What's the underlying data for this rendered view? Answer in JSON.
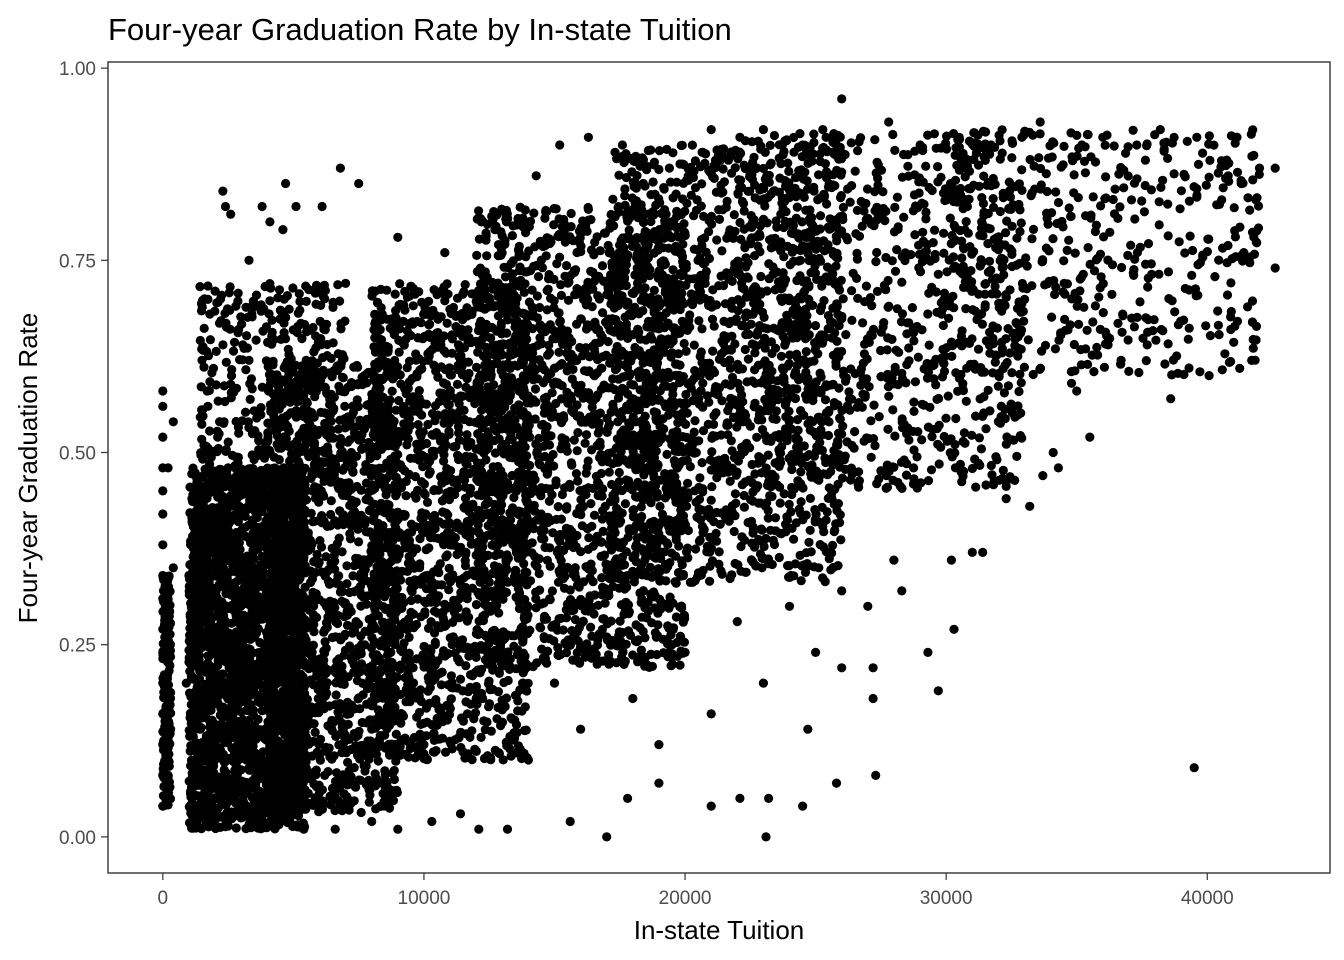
{
  "chart_data": {
    "type": "scatter",
    "title": "Four-year Graduation Rate by In-state Tuition",
    "xlabel": "In-state Tuition",
    "ylabel": "Four-year Graduation Rate",
    "xlim": [
      -2100,
      44700
    ],
    "ylim": [
      -0.047,
      1.008
    ],
    "x_ticks": [
      0,
      10000,
      20000,
      30000,
      40000
    ],
    "x_tick_labels": [
      "0",
      "10000",
      "20000",
      "30000",
      "40000"
    ],
    "y_ticks": [
      0,
      0.25,
      0.5,
      0.75,
      1.0
    ],
    "y_tick_labels": [
      "0.00",
      "0.25",
      "0.50",
      "0.75",
      "1.00"
    ],
    "grid": false,
    "point_color": "#000000",
    "series": [
      {
        "points": [
          [
            0,
            0.58
          ],
          [
            0,
            0.56
          ],
          [
            0,
            0.52
          ],
          [
            0,
            0.48
          ],
          [
            0,
            0.45
          ],
          [
            0,
            0.42
          ],
          [
            0,
            0.38
          ],
          [
            0,
            0.34
          ],
          [
            0,
            0.31
          ],
          [
            0,
            0.27
          ],
          [
            0,
            0.24
          ],
          [
            0,
            0.2
          ],
          [
            0,
            0.16
          ],
          [
            0,
            0.12
          ],
          [
            0,
            0.08
          ],
          [
            0,
            0.04
          ],
          [
            200,
            0.48
          ],
          [
            400,
            0.54
          ],
          [
            400,
            0.35
          ],
          [
            300,
            0.14
          ],
          [
            2300,
            0.84
          ],
          [
            2400,
            0.82
          ],
          [
            2600,
            0.81
          ],
          [
            3300,
            0.75
          ],
          [
            3800,
            0.82
          ],
          [
            4100,
            0.8
          ],
          [
            4700,
            0.85
          ],
          [
            4600,
            0.79
          ],
          [
            5100,
            0.82
          ],
          [
            6100,
            0.82
          ],
          [
            6800,
            0.87
          ],
          [
            7500,
            0.85
          ],
          [
            1600,
            0.7
          ],
          [
            1800,
            0.68
          ],
          [
            2000,
            0.71
          ],
          [
            2300,
            0.64
          ],
          [
            2900,
            0.66
          ],
          [
            3300,
            0.62
          ],
          [
            1500,
            0.62
          ],
          [
            1700,
            0.58
          ],
          [
            2100,
            0.52
          ],
          [
            2500,
            0.48
          ],
          [
            1400,
            0.44
          ],
          [
            1600,
            0.4
          ],
          [
            5200,
            0.6
          ],
          [
            5600,
            0.66
          ],
          [
            6200,
            0.7
          ],
          [
            7000,
            0.72
          ],
          [
            8400,
            0.68
          ],
          [
            9000,
            0.78
          ],
          [
            10800,
            0.76
          ],
          [
            12200,
            0.8
          ],
          [
            13700,
            0.8
          ],
          [
            14300,
            0.86
          ],
          [
            15200,
            0.9
          ],
          [
            16300,
            0.91
          ],
          [
            17600,
            0.9
          ],
          [
            18400,
            0.85
          ],
          [
            19400,
            0.87
          ],
          [
            21000,
            0.92
          ],
          [
            22100,
            0.91
          ],
          [
            23000,
            0.92
          ],
          [
            24500,
            0.9
          ],
          [
            25400,
            0.91
          ],
          [
            26000,
            0.96
          ],
          [
            27800,
            0.93
          ],
          [
            29000,
            0.9
          ],
          [
            30500,
            0.91
          ],
          [
            31500,
            0.88
          ],
          [
            32900,
            0.91
          ],
          [
            33600,
            0.93
          ],
          [
            35200,
            0.9
          ],
          [
            36000,
            0.91
          ],
          [
            37300,
            0.9
          ],
          [
            38200,
            0.92
          ],
          [
            39600,
            0.91
          ],
          [
            40100,
            0.88
          ],
          [
            40800,
            0.86
          ],
          [
            41300,
            0.85
          ],
          [
            42000,
            0.87
          ],
          [
            42600,
            0.87
          ],
          [
            42600,
            0.74
          ],
          [
            41400,
            0.76
          ],
          [
            40900,
            0.66
          ],
          [
            39300,
            0.61
          ],
          [
            38600,
            0.57
          ],
          [
            36200,
            0.64
          ],
          [
            34800,
            0.59
          ],
          [
            35500,
            0.52
          ],
          [
            34300,
            0.48
          ],
          [
            33200,
            0.43
          ],
          [
            31400,
            0.37
          ],
          [
            30300,
            0.27
          ],
          [
            29300,
            0.24
          ],
          [
            28300,
            0.32
          ],
          [
            27200,
            0.22
          ],
          [
            27200,
            0.18
          ],
          [
            26000,
            0.22
          ],
          [
            24700,
            0.14
          ],
          [
            23200,
            0.05
          ],
          [
            24500,
            0.04
          ],
          [
            25800,
            0.07
          ],
          [
            27300,
            0.08
          ],
          [
            22100,
            0.05
          ],
          [
            21000,
            0.04
          ],
          [
            19000,
            0.07
          ],
          [
            17800,
            0.05
          ],
          [
            17000,
            0.0
          ],
          [
            15600,
            0.02
          ],
          [
            13200,
            0.01
          ],
          [
            12100,
            0.01
          ],
          [
            11400,
            0.03
          ],
          [
            10300,
            0.02
          ],
          [
            9000,
            0.01
          ],
          [
            8000,
            0.02
          ],
          [
            6600,
            0.01
          ],
          [
            5400,
            0.01
          ],
          [
            23100,
            0.0
          ],
          [
            39500,
            0.09
          ],
          [
            29700,
            0.19
          ],
          [
            30200,
            0.36
          ],
          [
            31000,
            0.37
          ],
          [
            32300,
            0.44
          ],
          [
            33700,
            0.47
          ],
          [
            34100,
            0.5
          ],
          [
            35000,
            0.58
          ],
          [
            36700,
            0.62
          ],
          [
            37700,
            0.64
          ],
          [
            2000,
            0.3
          ],
          [
            2300,
            0.25
          ],
          [
            2600,
            0.2
          ],
          [
            2900,
            0.15
          ],
          [
            3200,
            0.1
          ],
          [
            3500,
            0.05
          ],
          [
            2000,
            0.12
          ],
          [
            2400,
            0.08
          ],
          [
            2800,
            0.03
          ],
          [
            3600,
            0.22
          ],
          [
            4000,
            0.18
          ],
          [
            4400,
            0.12
          ],
          [
            1200,
            0.28
          ],
          [
            1400,
            0.22
          ],
          [
            1600,
            0.18
          ],
          [
            1800,
            0.1
          ],
          [
            1900,
            0.04
          ],
          [
            900,
            0.2
          ],
          [
            1000,
            0.34
          ],
          [
            1100,
            0.14
          ],
          [
            4800,
            0.3
          ],
          [
            5200,
            0.24
          ],
          [
            5600,
            0.15
          ],
          [
            6200,
            0.08
          ],
          [
            6800,
            0.2
          ],
          [
            7400,
            0.28
          ],
          [
            8000,
            0.14
          ],
          [
            8800,
            0.06
          ],
          [
            9400,
            0.22
          ],
          [
            10000,
            0.12
          ],
          [
            11000,
            0.3
          ],
          [
            12000,
            0.18
          ],
          [
            13000,
            0.24
          ],
          [
            14000,
            0.1
          ],
          [
            15000,
            0.2
          ],
          [
            16000,
            0.14
          ],
          [
            17000,
            0.26
          ],
          [
            18000,
            0.18
          ],
          [
            19000,
            0.12
          ],
          [
            20000,
            0.24
          ],
          [
            21000,
            0.16
          ],
          [
            22000,
            0.28
          ],
          [
            23000,
            0.2
          ],
          [
            24000,
            0.3
          ],
          [
            25000,
            0.24
          ],
          [
            26000,
            0.32
          ],
          [
            27000,
            0.3
          ],
          [
            28000,
            0.36
          ]
        ]
      }
    ],
    "density_regions": [
      {
        "x_range": [
          0,
          300
        ],
        "y_range": [
          0.04,
          0.34
        ],
        "n": 200
      },
      {
        "x_range": [
          1000,
          5500
        ],
        "y_range": [
          0.01,
          0.48
        ],
        "n": 2400
      },
      {
        "x_range": [
          4000,
          9000
        ],
        "y_range": [
          0.03,
          0.62
        ],
        "n": 1300
      },
      {
        "x_range": [
          8000,
          14000
        ],
        "y_range": [
          0.1,
          0.72
        ],
        "n": 1400
      },
      {
        "x_range": [
          12000,
          20000
        ],
        "y_range": [
          0.22,
          0.82
        ],
        "n": 1600
      },
      {
        "x_range": [
          17000,
          26000
        ],
        "y_range": [
          0.33,
          0.9
        ],
        "n": 1300
      },
      {
        "x_range": [
          22000,
          33000
        ],
        "y_range": [
          0.45,
          0.92
        ],
        "n": 900
      },
      {
        "x_range": [
          30000,
          42000
        ],
        "y_range": [
          0.6,
          0.92
        ],
        "n": 500
      },
      {
        "x_range": [
          1400,
          7000
        ],
        "y_range": [
          0.45,
          0.72
        ],
        "n": 350
      }
    ]
  }
}
